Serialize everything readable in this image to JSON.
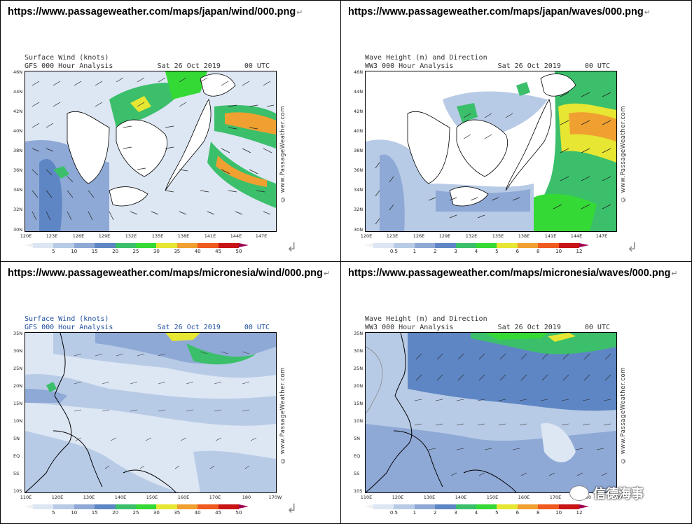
{
  "panels": [
    {
      "url": "https://www.passageweather.com/maps/japan/wind/000.png",
      "title": "Surface Wind (knots)",
      "model": "GFS 000 Hour Analysis",
      "date": "Sat 26 Oct 2019",
      "time": "00 UTC",
      "credit": "© www.PassageWeather.com",
      "y_labels": [
        "46N",
        "44N",
        "42N",
        "40N",
        "38N",
        "36N",
        "34N",
        "32N",
        "30N"
      ],
      "x_labels": [
        "120E",
        "123E",
        "126E",
        "129E",
        "132E",
        "135E",
        "138E",
        "141E",
        "144E",
        "147E"
      ],
      "legend_labels": [
        "5",
        "10",
        "15",
        "20",
        "25",
        "30",
        "35",
        "40",
        "45",
        "50"
      ],
      "legend_colors": [
        "#dde6f3",
        "#b8cbe6",
        "#8fa9d6",
        "#5f86c4",
        "#3bbf6b",
        "#35d935",
        "#e6e633",
        "#f0a030",
        "#f05a1e",
        "#c81414",
        "#a00050"
      ]
    },
    {
      "url": "https://www.passageweather.com/maps/japan/waves/000.png",
      "title": "Wave Height (m) and Direction",
      "model": "WW3 000 Hour Analysis",
      "date": "Sat 26 Oct 2019",
      "time": "00 UTC",
      "credit": "© www.PassageWeather.com",
      "y_labels": [
        "46N",
        "44N",
        "42N",
        "40N",
        "38N",
        "36N",
        "34N",
        "32N",
        "30N"
      ],
      "x_labels": [
        "120E",
        "123E",
        "126E",
        "129E",
        "132E",
        "135E",
        "138E",
        "141E",
        "144E",
        "147E"
      ],
      "legend_labels": [
        "0.5",
        "1",
        "2",
        "3",
        "4",
        "5",
        "6",
        "8",
        "10",
        "12"
      ],
      "legend_colors": [
        "#dde6f3",
        "#b8cbe6",
        "#8fa9d6",
        "#5f86c4",
        "#3bbf6b",
        "#35d935",
        "#e6e633",
        "#f0a030",
        "#f05a1e",
        "#c81414",
        "#a00050"
      ]
    },
    {
      "url": "https://www.passageweather.com/maps/micronesia/wind/000.png",
      "title": "Surface Wind (knots)",
      "model": "GFS 000 Hour Analysis",
      "date": "Sat 26 Oct 2019",
      "time": "00 UTC",
      "credit": "© www.PassageWeather.com",
      "y_labels": [
        "35N",
        "30N",
        "25N",
        "20N",
        "15N",
        "10N",
        "5N",
        "EQ",
        "5S",
        "10S"
      ],
      "x_labels": [
        "110E",
        "120E",
        "130E",
        "140E",
        "150E",
        "160E",
        "170E",
        "180",
        "170W"
      ],
      "legend_labels": [
        "5",
        "10",
        "15",
        "20",
        "25",
        "30",
        "35",
        "40",
        "45",
        "50"
      ],
      "legend_colors": [
        "#dde6f3",
        "#b8cbe6",
        "#8fa9d6",
        "#5f86c4",
        "#3bbf6b",
        "#35d935",
        "#e6e633",
        "#f0a030",
        "#f05a1e",
        "#c81414",
        "#a00050"
      ]
    },
    {
      "url": "https://www.passageweather.com/maps/micronesia/waves/000.png",
      "title": "Wave Height (m) and Direction",
      "model": "WW3 000 Hour Analysis",
      "date": "Sat 26 Oct 2019",
      "time": "00 UTC",
      "credit": "© www.PassageWeather.com",
      "y_labels": [
        "35N",
        "30N",
        "25N",
        "20N",
        "15N",
        "10N",
        "5N",
        "EQ",
        "5S",
        "10S"
      ],
      "x_labels": [
        "110E",
        "120E",
        "130E",
        "140E",
        "150E",
        "160E",
        "170E",
        "180",
        "170W"
      ],
      "legend_labels": [
        "0.5",
        "1",
        "2",
        "3",
        "4",
        "5",
        "6",
        "8",
        "10",
        "12"
      ],
      "legend_colors": [
        "#dde6f3",
        "#b8cbe6",
        "#8fa9d6",
        "#5f86c4",
        "#3bbf6b",
        "#35d935",
        "#e6e633",
        "#f0a030",
        "#f05a1e",
        "#c81414",
        "#a00050"
      ]
    }
  ],
  "return_mark": "↵",
  "paragraph_mark": "↲",
  "watermark": "信德海事"
}
